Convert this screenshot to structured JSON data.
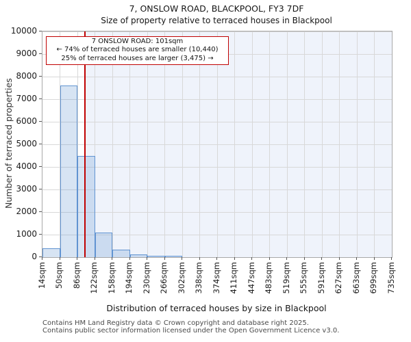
{
  "title": "7, ONSLOW ROAD, BLACKPOOL, FY3 7DF",
  "subtitle": "Size of property relative to terraced houses in Blackpool",
  "annotation": {
    "line1": "7 ONSLOW ROAD: 101sqm",
    "line2": "← 74% of terraced houses are smaller (10,440)",
    "line3": "25% of terraced houses are larger (3,475) →"
  },
  "footer": {
    "line1": "Contains HM Land Registry data © Crown copyright and database right 2025.",
    "line2": "Contains public sector information licensed under the Open Government Licence v3.0."
  },
  "chart_data": {
    "type": "bar",
    "title": "7, ONSLOW ROAD, BLACKPOOL, FY3 7DF",
    "subtitle": "Size of property relative to terraced houses in Blackpool",
    "xlabel": "Distribution of terraced houses by size in Blackpool",
    "ylabel": "Number of terraced properties",
    "xmin": 14,
    "xmax": 735,
    "ylim": [
      0,
      10000
    ],
    "y_ticks": [
      0,
      1000,
      2000,
      3000,
      4000,
      5000,
      6000,
      7000,
      8000,
      9000,
      10000
    ],
    "x_tick_values": [
      14,
      50,
      86,
      122,
      158,
      194,
      230,
      266,
      302,
      338,
      374,
      411,
      447,
      483,
      519,
      555,
      591,
      627,
      663,
      699,
      735
    ],
    "x_tick_labels": [
      "14sqm",
      "50sqm",
      "86sqm",
      "122sqm",
      "158sqm",
      "194sqm",
      "230sqm",
      "266sqm",
      "302sqm",
      "338sqm",
      "374sqm",
      "411sqm",
      "447sqm",
      "483sqm",
      "519sqm",
      "555sqm",
      "591sqm",
      "627sqm",
      "663sqm",
      "699sqm",
      "735sqm"
    ],
    "bin_count": 20,
    "values": [
      400,
      7600,
      4500,
      1100,
      330,
      120,
      50,
      30,
      0,
      0,
      0,
      0,
      0,
      0,
      0,
      0,
      0,
      0,
      0,
      0
    ],
    "marker_value": 101,
    "grid": true,
    "legend": "none",
    "colors": {
      "bar_border": "#6093d1",
      "bar_fill": "rgba(96,147,209,0.25)",
      "shade_fill": "#eff3fb",
      "grid": "#d8d8d8",
      "spine": "#a8a8a8",
      "marker": "#c00000",
      "annotation_border": "#c00000"
    }
  }
}
